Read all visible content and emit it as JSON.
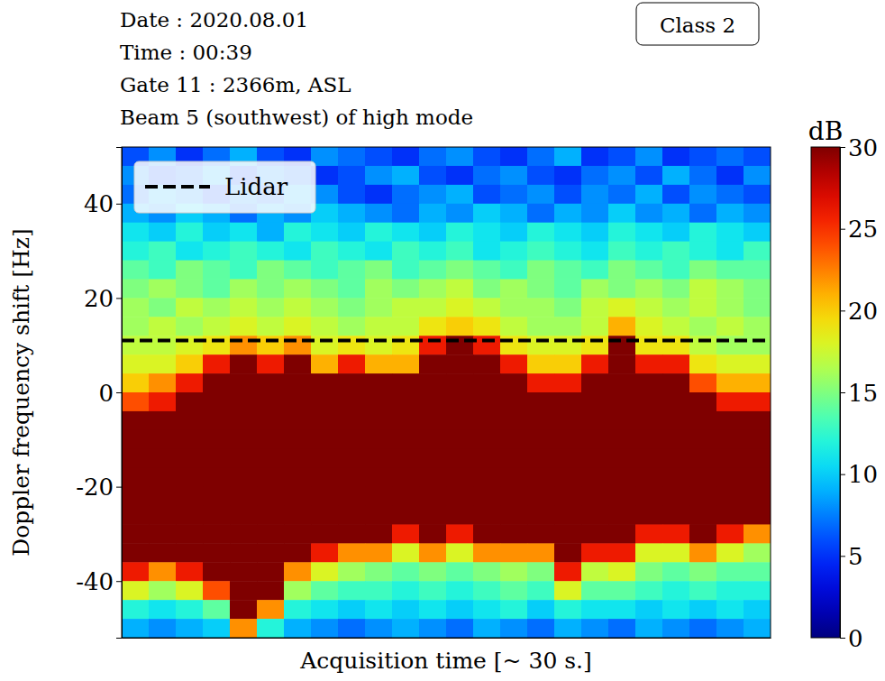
{
  "chart_data": {
    "type": "heatmap",
    "title_lines": [
      "Date : 2020.08.01",
      "Time : 00:39",
      "Gate 11 : 2366m, ASL",
      "Beam 5 (southwest) of high mode"
    ],
    "annotations": [
      "Class 2"
    ],
    "xlabel": "Acquisition time [~ 30 s.]",
    "ylabel": "Doppler frequency shift [Hz]",
    "tick_labels": "y",
    "color": "jet",
    "legend": "upper left",
    "xlim": [
      -0.5,
      23.5
    ],
    "ylim": [
      -52,
      52
    ],
    "yticks": [
      -40,
      -20,
      0,
      20,
      40
    ],
    "x": [
      0,
      1,
      2,
      3,
      4,
      5,
      6,
      7,
      8,
      9,
      10,
      11,
      12,
      13,
      14,
      15,
      16,
      17,
      18,
      19,
      20,
      21,
      22,
      23
    ],
    "y": [
      50,
      46,
      42,
      38,
      34,
      30,
      26,
      22,
      18,
      14,
      10,
      6,
      2,
      -2,
      -6,
      -10,
      -14,
      -18,
      -22,
      -26,
      -30,
      -34,
      -38,
      -42,
      -46,
      -50
    ],
    "z": [
      [
        6,
        8,
        5,
        7,
        9,
        6,
        5,
        8,
        7,
        6,
        5,
        7,
        8,
        6,
        5,
        7,
        9,
        5,
        6,
        8,
        5,
        6,
        7,
        6
      ],
      [
        8,
        6,
        7,
        9,
        6,
        8,
        7,
        5,
        6,
        8,
        9,
        6,
        5,
        7,
        8,
        6,
        5,
        7,
        8,
        6,
        9,
        7,
        5,
        8
      ],
      [
        7,
        9,
        8,
        6,
        8,
        7,
        9,
        8,
        6,
        5,
        7,
        8,
        9,
        6,
        7,
        8,
        6,
        8,
        7,
        9,
        6,
        8,
        7,
        6
      ],
      [
        9,
        8,
        10,
        9,
        7,
        9,
        8,
        10,
        9,
        8,
        7,
        9,
        8,
        10,
        9,
        7,
        9,
        8,
        10,
        8,
        9,
        7,
        9,
        8
      ],
      [
        11,
        10,
        12,
        10,
        11,
        9,
        12,
        11,
        10,
        12,
        11,
        10,
        12,
        11,
        10,
        12,
        11,
        10,
        12,
        11,
        10,
        12,
        11,
        10
      ],
      [
        12,
        13,
        11,
        12,
        13,
        12,
        11,
        13,
        12,
        11,
        13,
        12,
        13,
        11,
        12,
        13,
        12,
        11,
        13,
        12,
        13,
        12,
        11,
        13
      ],
      [
        14,
        13,
        15,
        14,
        13,
        15,
        14,
        13,
        14,
        15,
        13,
        14,
        15,
        14,
        13,
        15,
        14,
        13,
        15,
        14,
        13,
        15,
        14,
        14
      ],
      [
        15,
        16,
        15,
        14,
        16,
        15,
        16,
        15,
        14,
        16,
        15,
        16,
        17,
        15,
        16,
        15,
        14,
        16,
        15,
        16,
        15,
        17,
        16,
        15
      ],
      [
        16,
        15,
        17,
        16,
        17,
        16,
        17,
        16,
        15,
        16,
        17,
        17,
        18,
        17,
        16,
        16,
        15,
        17,
        18,
        17,
        16,
        17,
        16,
        15
      ],
      [
        16,
        17,
        16,
        17,
        18,
        17,
        18,
        17,
        16,
        17,
        17,
        19,
        20,
        19,
        17,
        16,
        16,
        17,
        21,
        18,
        17,
        16,
        17,
        16
      ],
      [
        17,
        17,
        18,
        19,
        22,
        20,
        22,
        18,
        19,
        18,
        19,
        26,
        30,
        26,
        19,
        18,
        18,
        19,
        30,
        19,
        19,
        17,
        16,
        16
      ],
      [
        18,
        18,
        20,
        26,
        30,
        26,
        30,
        21,
        26,
        21,
        21,
        30,
        30,
        30,
        26,
        20,
        20,
        26,
        30,
        26,
        26,
        19,
        18,
        18
      ],
      [
        20,
        22,
        26,
        30,
        30,
        30,
        30,
        30,
        30,
        30,
        30,
        30,
        30,
        30,
        30,
        26,
        26,
        30,
        30,
        30,
        30,
        24,
        21,
        21
      ],
      [
        24,
        26,
        30,
        30,
        30,
        30,
        30,
        30,
        30,
        30,
        30,
        30,
        30,
        30,
        30,
        30,
        30,
        30,
        30,
        30,
        30,
        30,
        26,
        26
      ],
      [
        30,
        30,
        30,
        30,
        30,
        30,
        30,
        30,
        30,
        30,
        30,
        30,
        30,
        30,
        30,
        30,
        30,
        30,
        30,
        30,
        30,
        30,
        30,
        30
      ],
      [
        30,
        30,
        30,
        30,
        30,
        30,
        30,
        30,
        30,
        30,
        30,
        30,
        30,
        30,
        30,
        30,
        30,
        30,
        30,
        30,
        30,
        30,
        30,
        30
      ],
      [
        30,
        30,
        30,
        30,
        30,
        30,
        30,
        30,
        30,
        30,
        30,
        30,
        30,
        30,
        30,
        30,
        30,
        30,
        30,
        30,
        30,
        30,
        30,
        30
      ],
      [
        30,
        30,
        30,
        30,
        30,
        30,
        30,
        30,
        30,
        30,
        30,
        30,
        30,
        30,
        30,
        30,
        30,
        30,
        30,
        30,
        30,
        30,
        30,
        30
      ],
      [
        30,
        30,
        30,
        30,
        30,
        30,
        30,
        30,
        30,
        30,
        30,
        30,
        30,
        30,
        30,
        30,
        30,
        30,
        30,
        30,
        30,
        30,
        30,
        30
      ],
      [
        30,
        30,
        30,
        30,
        30,
        30,
        30,
        30,
        30,
        30,
        30,
        30,
        30,
        30,
        30,
        30,
        30,
        30,
        30,
        30,
        30,
        30,
        30,
        30
      ],
      [
        30,
        30,
        30,
        30,
        30,
        30,
        30,
        30,
        30,
        30,
        26,
        30,
        26,
        30,
        30,
        30,
        30,
        30,
        30,
        26,
        26,
        30,
        26,
        22
      ],
      [
        30,
        30,
        30,
        30,
        30,
        30,
        30,
        26,
        22,
        22,
        18,
        22,
        18,
        22,
        22,
        22,
        30,
        26,
        26,
        18,
        18,
        22,
        18,
        16
      ],
      [
        26,
        22,
        26,
        30,
        30,
        30,
        22,
        18,
        16,
        15,
        14,
        15,
        14,
        15,
        16,
        15,
        26,
        17,
        18,
        15,
        14,
        15,
        14,
        14
      ],
      [
        18,
        16,
        18,
        24,
        30,
        30,
        16,
        14,
        13,
        13,
        12,
        13,
        12,
        13,
        14,
        13,
        18,
        14,
        14,
        13,
        12,
        13,
        12,
        12
      ],
      [
        12,
        11,
        12,
        14,
        30,
        22,
        12,
        11,
        10,
        11,
        10,
        11,
        10,
        11,
        12,
        10,
        12,
        11,
        11,
        10,
        11,
        10,
        11,
        10
      ],
      [
        9,
        8,
        9,
        10,
        22,
        12,
        9,
        8,
        7,
        8,
        9,
        8,
        7,
        9,
        8,
        7,
        9,
        8,
        7,
        9,
        8,
        7,
        8,
        9
      ]
    ],
    "colorbar": {
      "label": "dB",
      "range": [
        0,
        30
      ],
      "ticks": [
        0,
        5,
        10,
        15,
        20,
        25,
        30
      ]
    },
    "hlines": [
      {
        "name": "Lidar",
        "value": 11,
        "color": "#000000",
        "line_style": "dashed"
      }
    ]
  }
}
